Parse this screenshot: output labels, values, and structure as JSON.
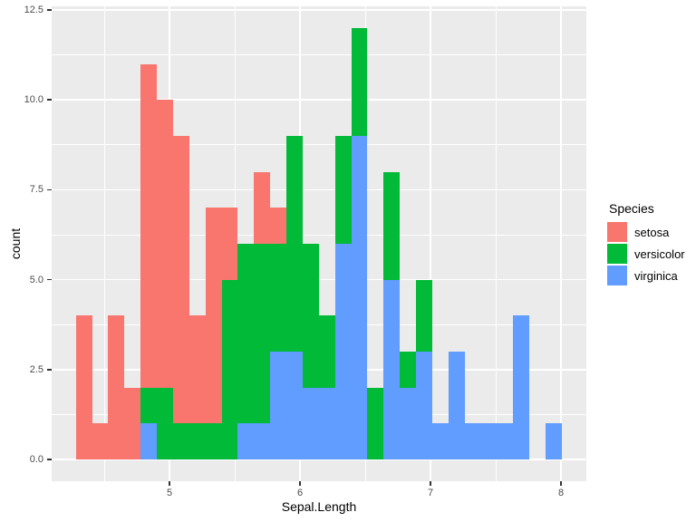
{
  "figure": {
    "background": "#FFFFFF"
  },
  "chart_data": {
    "type": "bar",
    "variant": "stacked-histogram",
    "title": "",
    "xlabel": "Sepal.Length",
    "ylabel": "count",
    "grid": true,
    "panel_bg": "#EBEBEB",
    "gridline_color": "#FFFFFF",
    "tick_mark_color": "#333333",
    "axis_text_color": "#4D4D4D",
    "axis_title_color": "#000000",
    "xlim": [
      4.097,
      8.194
    ],
    "ylim": [
      -0.6,
      12.6
    ],
    "x_major_ticks": [
      {
        "v": 5,
        "label": "5"
      },
      {
        "v": 6,
        "label": "6"
      },
      {
        "v": 7,
        "label": "7"
      },
      {
        "v": 8,
        "label": "8"
      }
    ],
    "y_major_ticks": [
      {
        "v": 0,
        "label": "0.0"
      },
      {
        "v": 2.5,
        "label": "2.5"
      },
      {
        "v": 5,
        "label": "5.0"
      },
      {
        "v": 7.5,
        "label": "7.5"
      },
      {
        "v": 10,
        "label": "10.0"
      },
      {
        "v": 12.5,
        "label": "12.5"
      }
    ],
    "x_minor_ticks": [
      4.5,
      5.5,
      6.5,
      7.5
    ],
    "y_minor_ticks": [
      1.25,
      3.75,
      6.25,
      8.75,
      11.25
    ],
    "stack_order_bottom_to_top": [
      "virginica",
      "versicolor",
      "setosa"
    ],
    "series_colors": {
      "setosa": "#F8766D",
      "versicolor": "#00BA38",
      "virginica": "#619CFF"
    },
    "legend": {
      "title": "Species",
      "position": "right",
      "key_bg": "#F2F2F2",
      "entries": [
        {
          "label": "setosa",
          "color": "#F8766D"
        },
        {
          "label": "versicolor",
          "color": "#00BA38"
        },
        {
          "label": "virginica",
          "color": "#619CFF"
        }
      ]
    },
    "bins": [
      {
        "x0": 4.283,
        "x1": 4.407,
        "setosa": 4,
        "versicolor": 0,
        "virginica": 0
      },
      {
        "x0": 4.407,
        "x1": 4.531,
        "setosa": 1,
        "versicolor": 0,
        "virginica": 0
      },
      {
        "x0": 4.531,
        "x1": 4.655,
        "setosa": 4,
        "versicolor": 0,
        "virginica": 0
      },
      {
        "x0": 4.655,
        "x1": 4.779,
        "setosa": 2,
        "versicolor": 0,
        "virginica": 0
      },
      {
        "x0": 4.779,
        "x1": 4.903,
        "setosa": 9,
        "versicolor": 1,
        "virginica": 1
      },
      {
        "x0": 4.903,
        "x1": 5.028,
        "setosa": 8,
        "versicolor": 2,
        "virginica": 0
      },
      {
        "x0": 5.028,
        "x1": 5.152,
        "setosa": 8,
        "versicolor": 1,
        "virginica": 0
      },
      {
        "x0": 5.152,
        "x1": 5.276,
        "setosa": 3,
        "versicolor": 1,
        "virginica": 0
      },
      {
        "x0": 5.276,
        "x1": 5.4,
        "setosa": 6,
        "versicolor": 1,
        "virginica": 0
      },
      {
        "x0": 5.4,
        "x1": 5.524,
        "setosa": 2,
        "versicolor": 5,
        "virginica": 0
      },
      {
        "x0": 5.524,
        "x1": 5.648,
        "setosa": 0,
        "versicolor": 5,
        "virginica": 1
      },
      {
        "x0": 5.648,
        "x1": 5.772,
        "setosa": 2,
        "versicolor": 5,
        "virginica": 1
      },
      {
        "x0": 5.772,
        "x1": 5.897,
        "setosa": 1,
        "versicolor": 3,
        "virginica": 3
      },
      {
        "x0": 5.897,
        "x1": 6.021,
        "setosa": 0,
        "versicolor": 6,
        "virginica": 3
      },
      {
        "x0": 6.021,
        "x1": 6.145,
        "setosa": 0,
        "versicolor": 4,
        "virginica": 2
      },
      {
        "x0": 6.145,
        "x1": 6.269,
        "setosa": 0,
        "versicolor": 2,
        "virginica": 2
      },
      {
        "x0": 6.269,
        "x1": 6.393,
        "setosa": 0,
        "versicolor": 3,
        "virginica": 6
      },
      {
        "x0": 6.393,
        "x1": 6.517,
        "setosa": 0,
        "versicolor": 3,
        "virginica": 9
      },
      {
        "x0": 6.517,
        "x1": 6.641,
        "setosa": 0,
        "versicolor": 2,
        "virginica": 0
      },
      {
        "x0": 6.641,
        "x1": 6.766,
        "setosa": 0,
        "versicolor": 3,
        "virginica": 5
      },
      {
        "x0": 6.766,
        "x1": 6.89,
        "setosa": 0,
        "versicolor": 1,
        "virginica": 2
      },
      {
        "x0": 6.89,
        "x1": 7.014,
        "setosa": 0,
        "versicolor": 2,
        "virginica": 3
      },
      {
        "x0": 7.014,
        "x1": 7.138,
        "setosa": 0,
        "versicolor": 0,
        "virginica": 1
      },
      {
        "x0": 7.138,
        "x1": 7.262,
        "setosa": 0,
        "versicolor": 0,
        "virginica": 3
      },
      {
        "x0": 7.262,
        "x1": 7.386,
        "setosa": 0,
        "versicolor": 0,
        "virginica": 1
      },
      {
        "x0": 7.386,
        "x1": 7.51,
        "setosa": 0,
        "versicolor": 0,
        "virginica": 1
      },
      {
        "x0": 7.51,
        "x1": 7.634,
        "setosa": 0,
        "versicolor": 0,
        "virginica": 1
      },
      {
        "x0": 7.634,
        "x1": 7.759,
        "setosa": 0,
        "versicolor": 0,
        "virginica": 4
      },
      {
        "x0": 7.759,
        "x1": 7.883,
        "setosa": 0,
        "versicolor": 0,
        "virginica": 0
      },
      {
        "x0": 7.883,
        "x1": 8.007,
        "setosa": 0,
        "versicolor": 0,
        "virginica": 1
      }
    ]
  }
}
